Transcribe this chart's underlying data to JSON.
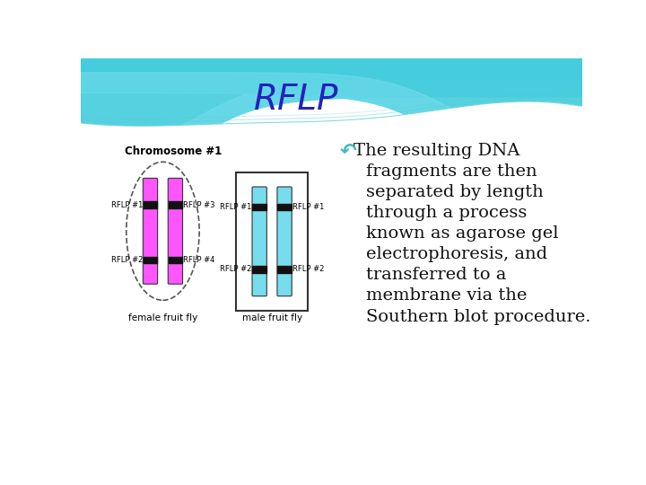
{
  "title": "RFLP",
  "title_color": "#2222bb",
  "title_fontsize": 28,
  "bg_color": "#ffffff",
  "text_lines": [
    " The resulting DNA",
    "   fragments are then",
    "   separated by length",
    "   through a process",
    "   known as agarose gel",
    "   electrophoresis, and",
    "   transferred to a",
    "   membrane via the",
    "   Southern blot procedure."
  ],
  "bullet_color": "#44bbbb",
  "text_color": "#111111",
  "chromosome_label": "Chromosome #1",
  "female_label": "female fruit fly",
  "male_label": "male fruit fly",
  "pink_color": "#ff55ff",
  "cyan_color": "#77ddee",
  "band_color": "#111111",
  "wave_color1": "#44ccdd",
  "wave_color2": "#77ddee",
  "wave_color3": "#aaeef5",
  "ellipse_color": "#888888",
  "rflp_label_fontsize": 6.0,
  "chr_label_fontsize": 8.5,
  "sub_label_fontsize": 7.5
}
